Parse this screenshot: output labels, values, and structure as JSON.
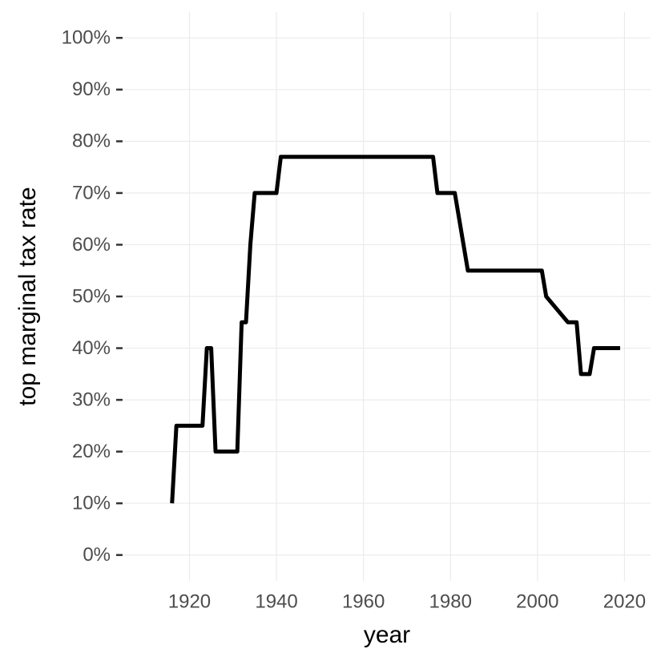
{
  "chart_data": {
    "type": "line",
    "x_label": "year",
    "y_label": "top marginal tax rate",
    "x": [
      1916,
      1917,
      1923,
      1924,
      1925,
      1926,
      1931,
      1932,
      1933,
      1934,
      1935,
      1940,
      1941,
      1976,
      1977,
      1981,
      1984,
      2001,
      2002,
      2007,
      2009,
      2010,
      2012,
      2013,
      2019
    ],
    "series": [
      {
        "color": "#000000",
        "values": [
          10,
          25,
          25,
          40,
          40,
          20,
          20,
          45,
          45,
          60,
          70,
          70,
          77,
          77,
          70,
          70,
          55,
          55,
          50,
          45,
          45,
          35,
          35,
          40,
          40
        ]
      }
    ],
    "xlim": [
      1905,
      2026
    ],
    "xticks": [
      1920,
      1940,
      1960,
      1980,
      2000,
      2020
    ],
    "ylim": [
      -5,
      105
    ],
    "yticks": [
      {
        "value": 0,
        "label": "0%"
      },
      {
        "value": 10,
        "label": "10%"
      },
      {
        "value": 20,
        "label": "20%"
      },
      {
        "value": 30,
        "label": "30%"
      },
      {
        "value": 40,
        "label": "40%"
      },
      {
        "value": 50,
        "label": "50%"
      },
      {
        "value": 60,
        "label": "60%"
      },
      {
        "value": 70,
        "label": "70%"
      },
      {
        "value": 80,
        "label": "80%"
      },
      {
        "value": 90,
        "label": "90%"
      },
      {
        "value": 100,
        "label": "100%"
      }
    ],
    "grid": true
  }
}
